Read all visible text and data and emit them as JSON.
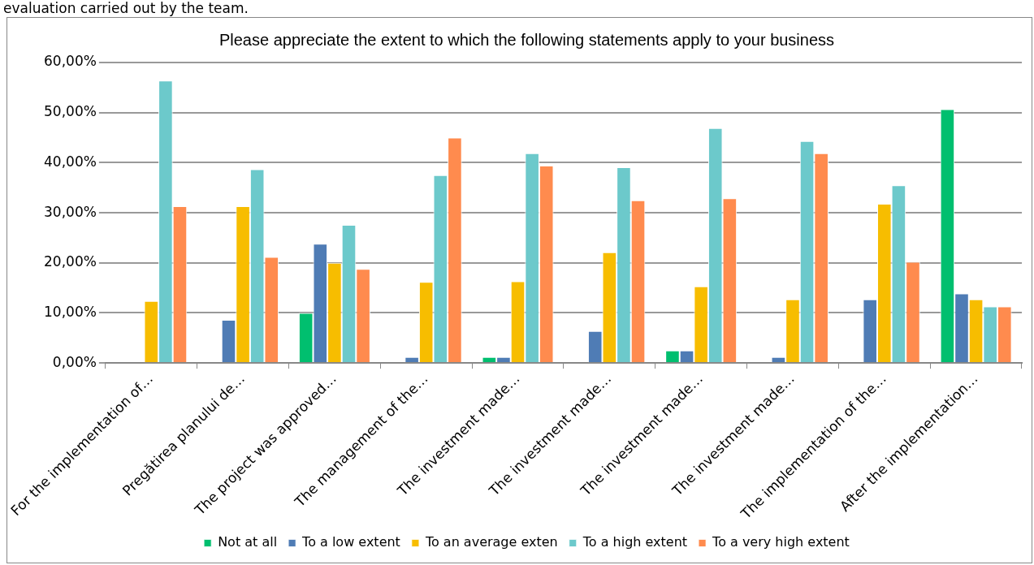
{
  "chart_data": {
    "type": "bar",
    "title": "Please appreciate the extent to which the following statements apply to your business",
    "annotations": [
      "evaluation carried out by the team."
    ],
    "categories": [
      "For the implementation of…",
      "Pregătirea planului de…",
      "The project was approved…",
      "The management of the…",
      "The investment made…",
      "The investment made…",
      "The investment made…",
      "The investment made…",
      "The implementation of the…",
      "After the implementation…"
    ],
    "series": [
      {
        "name": "Not at all",
        "color": "#00bf6f",
        "values": [
          0,
          0,
          10.0,
          0,
          1.2,
          0,
          2.5,
          0,
          0,
          50.7
        ]
      },
      {
        "name": "To a low extent",
        "color": "#4f7cb5",
        "values": [
          0,
          8.6,
          23.8,
          1.2,
          1.2,
          6.4,
          2.5,
          1.2,
          12.7,
          13.9
        ]
      },
      {
        "name": "To an average exten",
        "color": "#f7bd00",
        "values": [
          12.4,
          31.3,
          20.0,
          16.2,
          16.3,
          22.1,
          15.3,
          12.7,
          31.8,
          12.7
        ]
      },
      {
        "name": "To a high extent",
        "color": "#6cc9cb",
        "values": [
          56.4,
          38.7,
          27.6,
          37.5,
          41.9,
          39.1,
          46.9,
          44.3,
          35.5,
          11.3
        ]
      },
      {
        "name": "To a very high extent",
        "color": "#ff8b4e",
        "values": [
          31.3,
          21.2,
          18.8,
          45.0,
          39.4,
          32.5,
          32.9,
          41.9,
          20.2,
          11.3
        ]
      }
    ],
    "ylim": [
      0,
      60
    ],
    "yticks": [
      {
        "value": 0,
        "label": "0,00%"
      },
      {
        "value": 10,
        "label": "10,00%"
      },
      {
        "value": 20,
        "label": "20,00%"
      },
      {
        "value": 30,
        "label": "30,00%"
      },
      {
        "value": 40,
        "label": "40,00%"
      },
      {
        "value": 50,
        "label": "50,00%"
      },
      {
        "value": 60,
        "label": "60,00%"
      }
    ],
    "grid": "y",
    "legend": "bottom"
  }
}
